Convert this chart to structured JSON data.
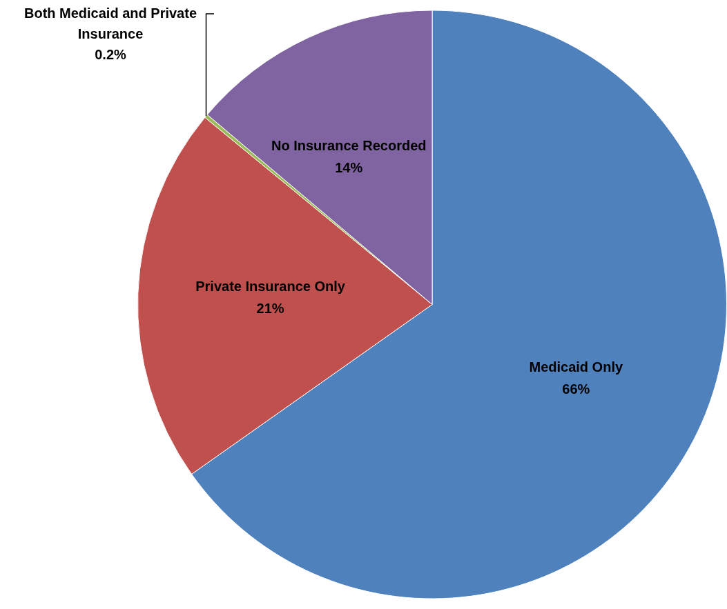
{
  "chart_data": {
    "type": "pie",
    "categories": [
      "Medicaid Only",
      "Private Insurance Only",
      "Both Medicaid and Private Insurance",
      "No Insurance Recorded"
    ],
    "values": [
      66,
      21,
      0.2,
      14
    ],
    "value_labels": [
      "66%",
      "21%",
      "0.2%",
      "14%"
    ],
    "colors": [
      "#4f81bd",
      "#c0504d",
      "#9bbb59",
      "#8064a2"
    ],
    "legend": false
  }
}
